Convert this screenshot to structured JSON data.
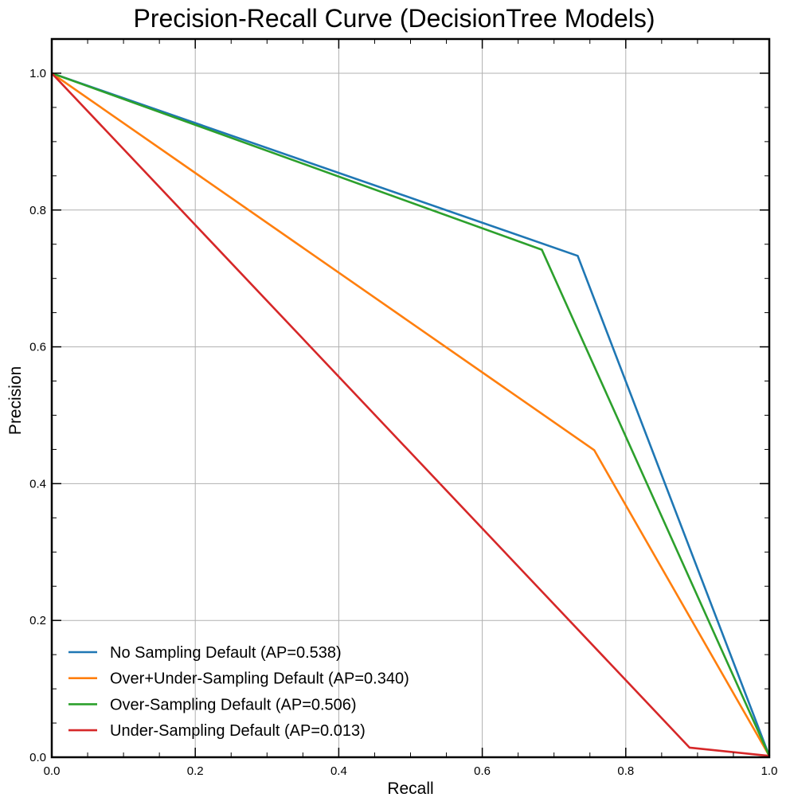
{
  "chart_data": {
    "type": "line",
    "title": "Precision-Recall Curve (DecisionTree Models)",
    "xlabel": "Recall",
    "ylabel": "Precision",
    "xlim": [
      0.0,
      1.0
    ],
    "ylim": [
      0.0,
      1.05
    ],
    "grid": true,
    "legend_position": "lower-left",
    "x_ticks": [
      0.0,
      0.2,
      0.4,
      0.6,
      0.8,
      1.0
    ],
    "y_ticks": [
      0.0,
      0.2,
      0.4,
      0.6,
      0.8,
      1.0
    ],
    "x_tick_labels": [
      "0.0",
      "0.2",
      "0.4",
      "0.6",
      "0.8",
      "1.0"
    ],
    "y_tick_labels": [
      "0.0",
      "0.2",
      "0.4",
      "0.6",
      "0.8",
      "1.0"
    ],
    "series": [
      {
        "name": "No Sampling Default (AP=0.538)",
        "color": "#1f77b4",
        "x": [
          0.0,
          0.733,
          1.0
        ],
        "y": [
          1.0,
          0.733,
          0.002
        ]
      },
      {
        "name": "Over+Under-Sampling Default (AP=0.340)",
        "color": "#ff7f0e",
        "x": [
          0.0,
          0.756,
          1.0
        ],
        "y": [
          1.0,
          0.449,
          0.002
        ]
      },
      {
        "name": "Over-Sampling Default (AP=0.506)",
        "color": "#2ca02c",
        "x": [
          0.0,
          0.683,
          1.0
        ],
        "y": [
          1.0,
          0.742,
          0.002
        ]
      },
      {
        "name": "Under-Sampling Default (AP=0.013)",
        "color": "#d62728",
        "x": [
          0.0,
          0.889,
          1.0
        ],
        "y": [
          1.0,
          0.014,
          0.002
        ]
      }
    ]
  }
}
